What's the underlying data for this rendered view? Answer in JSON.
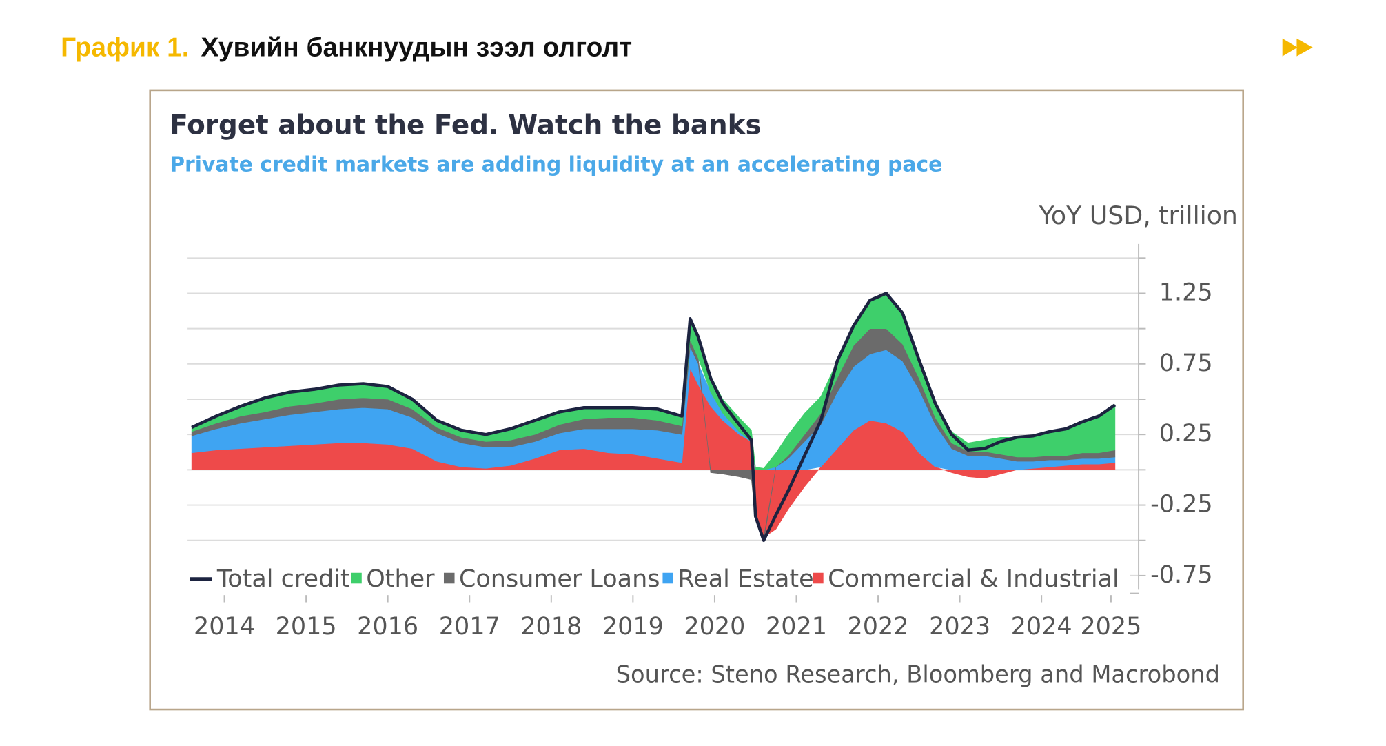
{
  "header": {
    "label": "График 1.",
    "title": "Хувийн банкнуудын зээл олголт"
  },
  "chart_data": {
    "type": "area",
    "title": "Forget about the Fed. Watch the banks",
    "subtitle": "Private credit markets are adding liquidity at an accelerating pace",
    "unit_label": "YoY USD, trillion",
    "source": "Source: Steno Research, Bloomberg and Macrobond",
    "x": [
      2014.1,
      2014.4,
      2014.7,
      2015.0,
      2015.3,
      2015.6,
      2015.9,
      2016.2,
      2016.5,
      2016.8,
      2017.1,
      2017.4,
      2017.7,
      2018.0,
      2018.3,
      2018.6,
      2018.9,
      2019.2,
      2019.5,
      2019.8,
      2020.1,
      2020.2,
      2020.3,
      2020.45,
      2020.6,
      2020.8,
      2020.95,
      2021.0,
      2021.1,
      2021.25,
      2021.4,
      2021.6,
      2021.8,
      2022.0,
      2022.2,
      2022.4,
      2022.6,
      2022.8,
      2023.0,
      2023.2,
      2023.4,
      2023.6,
      2023.8,
      2024.0,
      2024.2,
      2024.4,
      2024.6,
      2024.8,
      2025.0,
      2025.2,
      2025.4
    ],
    "series": [
      {
        "name": "Total credit",
        "type": "line",
        "color": "#1c2340",
        "values": [
          0.3,
          0.38,
          0.45,
          0.51,
          0.55,
          0.57,
          0.6,
          0.61,
          0.59,
          0.5,
          0.35,
          0.28,
          0.25,
          0.29,
          0.35,
          0.41,
          0.44,
          0.44,
          0.44,
          0.43,
          0.38,
          1.07,
          0.94,
          0.65,
          0.47,
          0.32,
          0.21,
          -0.33,
          -0.5,
          -0.32,
          -0.15,
          0.1,
          0.35,
          0.77,
          1.02,
          1.2,
          1.25,
          1.11,
          0.78,
          0.47,
          0.25,
          0.14,
          0.15,
          0.2,
          0.23,
          0.24,
          0.27,
          0.29,
          0.34,
          0.38,
          0.46
        ]
      },
      {
        "name": "Other",
        "color": "#3ecf6b",
        "values": [
          0.03,
          0.05,
          0.07,
          0.1,
          0.1,
          0.1,
          0.1,
          0.1,
          0.09,
          0.07,
          0.05,
          0.05,
          0.05,
          0.08,
          0.1,
          0.09,
          0.08,
          0.07,
          0.07,
          0.08,
          0.07,
          0.15,
          0.15,
          0.12,
          0.1,
          0.1,
          0.08,
          0.02,
          0.01,
          0.1,
          0.15,
          0.15,
          0.12,
          0.12,
          0.14,
          0.2,
          0.25,
          0.22,
          0.13,
          0.1,
          0.08,
          0.06,
          0.08,
          0.12,
          0.14,
          0.15,
          0.17,
          0.19,
          0.22,
          0.26,
          0.32
        ]
      },
      {
        "name": "Consumer Loans",
        "color": "#6b6b6b",
        "values": [
          0.03,
          0.04,
          0.05,
          0.05,
          0.06,
          0.06,
          0.07,
          0.07,
          0.07,
          0.06,
          0.04,
          0.04,
          0.04,
          0.05,
          0.05,
          0.06,
          0.07,
          0.08,
          0.08,
          0.07,
          0.06,
          0.05,
          0.04,
          -0.02,
          -0.03,
          -0.05,
          -0.07,
          -0.05,
          -0.03,
          0,
          0.02,
          0.05,
          0.08,
          0.1,
          0.15,
          0.18,
          0.15,
          0.12,
          0.08,
          0.05,
          0.04,
          0.03,
          0.03,
          0.03,
          0.03,
          0.03,
          0.03,
          0.03,
          0.04,
          0.04,
          0.05
        ]
      },
      {
        "name": "Real Estate",
        "color": "#3fa4f2",
        "values": [
          0.12,
          0.15,
          0.18,
          0.2,
          0.22,
          0.23,
          0.24,
          0.25,
          0.25,
          0.22,
          0.2,
          0.17,
          0.15,
          0.13,
          0.12,
          0.12,
          0.14,
          0.17,
          0.18,
          0.2,
          0.2,
          0.15,
          0.15,
          0.1,
          0.05,
          0.02,
          0,
          0,
          0,
          0.02,
          0.08,
          0.2,
          0.3,
          0.4,
          0.45,
          0.47,
          0.52,
          0.5,
          0.45,
          0.3,
          0.15,
          0.1,
          0.1,
          0.08,
          0.06,
          0.05,
          0.05,
          0.04,
          0.04,
          0.04,
          0.04
        ]
      },
      {
        "name": "Commercial & Industrial",
        "color": "#ee4a4a",
        "values": [
          0.12,
          0.14,
          0.15,
          0.16,
          0.17,
          0.18,
          0.19,
          0.19,
          0.18,
          0.15,
          0.06,
          0.02,
          0.01,
          0.03,
          0.08,
          0.14,
          0.15,
          0.12,
          0.11,
          0.08,
          0.05,
          0.72,
          0.6,
          0.45,
          0.35,
          0.25,
          0.2,
          -0.3,
          -0.48,
          -0.42,
          -0.28,
          -0.12,
          0.02,
          0.15,
          0.28,
          0.35,
          0.33,
          0.27,
          0.12,
          0.02,
          -0.02,
          -0.05,
          -0.06,
          -0.03,
          0,
          0.01,
          0.02,
          0.03,
          0.04,
          0.04,
          0.05
        ]
      }
    ],
    "xlim": [
      2014,
      2025.6
    ],
    "xticks": [
      {
        "value": 2014.5,
        "label": "2014"
      },
      {
        "value": 2015.5,
        "label": "2015"
      },
      {
        "value": 2016.5,
        "label": "2016"
      },
      {
        "value": 2017.5,
        "label": "2017"
      },
      {
        "value": 2018.5,
        "label": "2018"
      },
      {
        "value": 2019.5,
        "label": "2019"
      },
      {
        "value": 2020.5,
        "label": "2020"
      },
      {
        "value": 2021.5,
        "label": "2021"
      },
      {
        "value": 2022.5,
        "label": "2022"
      },
      {
        "value": 2023.5,
        "label": "2023"
      },
      {
        "value": 2024.5,
        "label": "2024"
      },
      {
        "value": 2025.35,
        "label": "2025"
      }
    ],
    "ylim": [
      -0.85,
      1.6
    ],
    "yticks": [
      -0.75,
      -0.25,
      0.25,
      0.75,
      1.25
    ],
    "yminorticks": [
      -0.5,
      0,
      0.5,
      1,
      1.5
    ],
    "grid": true
  }
}
